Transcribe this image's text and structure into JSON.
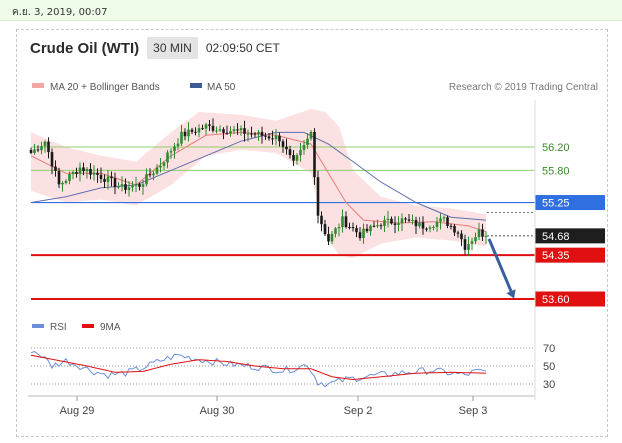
{
  "header": {
    "date_text": "ค.ย. 3, 2019, 00:07",
    "title": "Crude Oil (WTI)",
    "timeframe": "30 MIN",
    "clock": "02:09:50 CET"
  },
  "legend": {
    "ma20_label": "MA 20 + Bollinger Bands",
    "ma50_label": "MA 50",
    "credit": "Research © 2019 Trading Central"
  },
  "colors": {
    "bull": "#2e8b2e",
    "bear": "#1a1a1a",
    "band": "#f8c8c8",
    "ma20": "#e97a7a",
    "ma50": "#5d6fae",
    "blue_level": "#2f6fe0",
    "red_level": "#e01010",
    "green_level": "#8fcf6b",
    "arrow": "#3a5fa0",
    "rsi": "#6a8fd8",
    "rsi_ma": "#e01010"
  },
  "chart_data": [
    {
      "type": "candlestick",
      "x_ticks": [
        "Aug 29",
        "Aug 30",
        "Sep 2",
        "Sep 3"
      ],
      "ylim": [
        53.3,
        57.0
      ],
      "levels": [
        {
          "value": 56.2,
          "label": "56.20",
          "style": "green"
        },
        {
          "value": 55.8,
          "label": "55.80",
          "style": "green"
        },
        {
          "value": 55.25,
          "label": "55.25",
          "style": "blue"
        },
        {
          "value": 54.68,
          "label": "54.68",
          "style": "last"
        },
        {
          "value": 54.35,
          "label": "54.35",
          "style": "red"
        },
        {
          "value": 53.6,
          "label": "53.60",
          "style": "red"
        }
      ],
      "anchors": [
        [
          0,
          56.1
        ],
        [
          4,
          56.3
        ],
        [
          8,
          55.55
        ],
        [
          14,
          55.85
        ],
        [
          20,
          55.7
        ],
        [
          26,
          55.5
        ],
        [
          31,
          55.55
        ],
        [
          37,
          55.9
        ],
        [
          43,
          56.4
        ],
        [
          50,
          56.55
        ],
        [
          55,
          56.5
        ],
        [
          61,
          56.45
        ],
        [
          66,
          56.4
        ],
        [
          71,
          56.35
        ],
        [
          75,
          55.9
        ],
        [
          78,
          56.2
        ],
        [
          80,
          56.45
        ],
        [
          82,
          55.05
        ],
        [
          85,
          54.6
        ],
        [
          89,
          54.95
        ],
        [
          94,
          54.7
        ],
        [
          100,
          54.9
        ],
        [
          106,
          54.95
        ],
        [
          112,
          54.85
        ],
        [
          118,
          54.95
        ],
        [
          122,
          54.75
        ],
        [
          124,
          54.5
        ],
        [
          128,
          54.75
        ],
        [
          130,
          54.68
        ]
      ],
      "ma20": [
        [
          0,
          56.05
        ],
        [
          10,
          55.75
        ],
        [
          20,
          55.75
        ],
        [
          30,
          55.55
        ],
        [
          40,
          56.05
        ],
        [
          50,
          56.4
        ],
        [
          60,
          56.45
        ],
        [
          70,
          56.4
        ],
        [
          80,
          56.25
        ],
        [
          85,
          55.75
        ],
        [
          90,
          55.25
        ],
        [
          95,
          54.95
        ],
        [
          105,
          54.9
        ],
        [
          115,
          54.92
        ],
        [
          125,
          54.85
        ],
        [
          130,
          54.75
        ]
      ],
      "ma50": [
        [
          0,
          55.25
        ],
        [
          10,
          55.35
        ],
        [
          20,
          55.5
        ],
        [
          30,
          55.55
        ],
        [
          40,
          55.8
        ],
        [
          50,
          56.05
        ],
        [
          60,
          56.3
        ],
        [
          70,
          56.45
        ],
        [
          78,
          56.45
        ],
        [
          85,
          56.25
        ],
        [
          92,
          55.95
        ],
        [
          100,
          55.6
        ],
        [
          110,
          55.25
        ],
        [
          120,
          55.0
        ],
        [
          130,
          54.95
        ]
      ],
      "bollinger_upper": [
        [
          0,
          56.45
        ],
        [
          10,
          56.2
        ],
        [
          20,
          56.05
        ],
        [
          30,
          55.95
        ],
        [
          40,
          56.45
        ],
        [
          48,
          56.8
        ],
        [
          60,
          56.75
        ],
        [
          70,
          56.65
        ],
        [
          80,
          56.85
        ],
        [
          84,
          56.8
        ],
        [
          88,
          56.55
        ],
        [
          92,
          55.8
        ],
        [
          100,
          55.35
        ],
        [
          110,
          55.2
        ],
        [
          120,
          55.15
        ],
        [
          130,
          55.05
        ]
      ],
      "bollinger_lower": [
        [
          0,
          55.45
        ],
        [
          10,
          55.25
        ],
        [
          20,
          55.3
        ],
        [
          30,
          55.2
        ],
        [
          40,
          55.55
        ],
        [
          50,
          56.05
        ],
        [
          60,
          56.15
        ],
        [
          70,
          56.1
        ],
        [
          80,
          55.75
        ],
        [
          84,
          54.7
        ],
        [
          88,
          54.35
        ],
        [
          92,
          54.3
        ],
        [
          100,
          54.55
        ],
        [
          110,
          54.65
        ],
        [
          120,
          54.6
        ],
        [
          130,
          54.5
        ]
      ],
      "forecast_arrow": {
        "from": [
          130,
          54.68
        ],
        "to": [
          140,
          53.7
        ]
      }
    },
    {
      "type": "line",
      "series": [
        {
          "name": "RSI"
        },
        {
          "name": "9MA"
        }
      ],
      "ylim": [
        20,
        80
      ],
      "y_ticks": [
        70,
        50,
        30
      ],
      "rsi_anchors": [
        [
          0,
          68
        ],
        [
          3,
          62
        ],
        [
          6,
          50
        ],
        [
          10,
          56
        ],
        [
          14,
          50
        ],
        [
          18,
          44
        ],
        [
          22,
          40
        ],
        [
          27,
          42
        ],
        [
          32,
          48
        ],
        [
          37,
          56
        ],
        [
          42,
          62
        ],
        [
          47,
          58
        ],
        [
          52,
          55
        ],
        [
          57,
          52
        ],
        [
          62,
          50
        ],
        [
          67,
          48
        ],
        [
          72,
          45
        ],
        [
          76,
          48
        ],
        [
          79,
          52
        ],
        [
          82,
          32
        ],
        [
          85,
          30
        ],
        [
          90,
          35
        ],
        [
          95,
          38
        ],
        [
          100,
          40
        ],
        [
          105,
          42
        ],
        [
          110,
          44
        ],
        [
          115,
          45
        ],
        [
          120,
          42
        ],
        [
          124,
          40
        ],
        [
          127,
          44
        ],
        [
          130,
          43
        ]
      ],
      "ma_anchors": [
        [
          0,
          62
        ],
        [
          8,
          56
        ],
        [
          16,
          50
        ],
        [
          24,
          43
        ],
        [
          32,
          44
        ],
        [
          40,
          52
        ],
        [
          48,
          57
        ],
        [
          56,
          55
        ],
        [
          64,
          50
        ],
        [
          72,
          47
        ],
        [
          80,
          47
        ],
        [
          86,
          38
        ],
        [
          92,
          35
        ],
        [
          100,
          38
        ],
        [
          110,
          42
        ],
        [
          120,
          43
        ],
        [
          130,
          42
        ]
      ]
    }
  ]
}
